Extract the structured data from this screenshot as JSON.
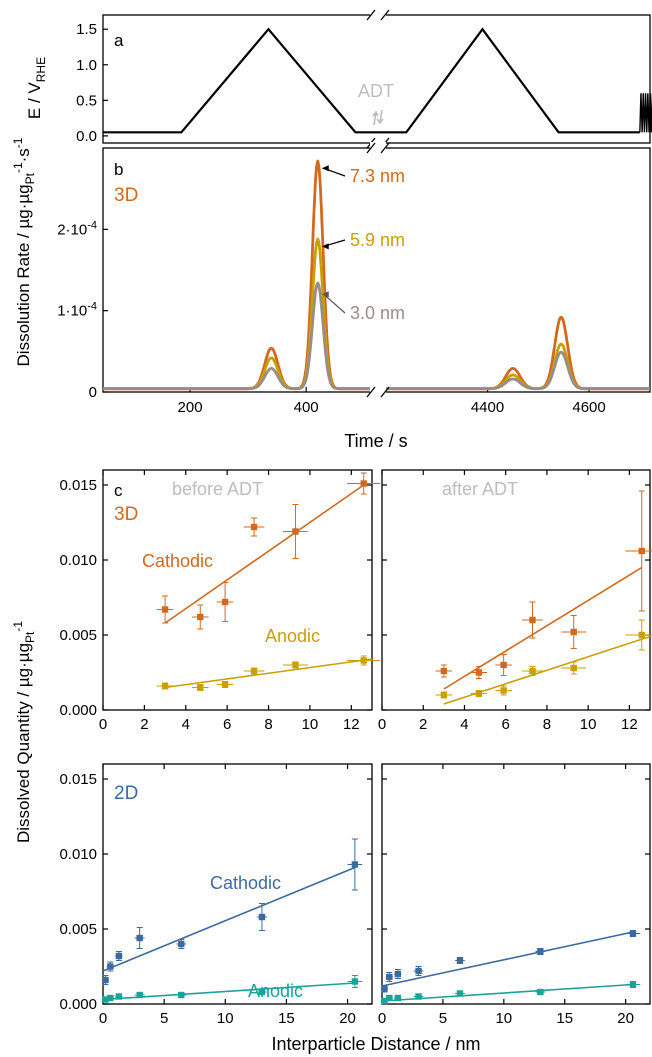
{
  "colors": {
    "axis": "#000000",
    "label_grey": "#bdbdbd",
    "orange": "#d2691e",
    "gold": "#c9a000",
    "grey": "#9a8c86",
    "blue": "#3d6a9e",
    "teal": "#1aa39a"
  },
  "figure": {
    "panel_a_label": "a",
    "panel_b_label": "b",
    "panel_c_label": "c",
    "label_3d": "3D",
    "label_2d": "2D",
    "adt_label": "ADT",
    "time_axis_label": "Time / s",
    "rate_axis_label": "Dissolution Rate / µg·µg",
    "rate_axis_sub": "Pt",
    "rate_axis_sup1": "-1",
    "rate_axis_mid": "·s",
    "rate_axis_sup2": "-1",
    "potential_axis_label": "E / V",
    "potential_axis_sub": "RHE",
    "quantity_axis_label": "Dissolved Quantity / µg·µg",
    "quantity_axis_sub": "Pt",
    "quantity_axis_sup": "-1",
    "distance_axis_label": "Interparticle Distance / nm",
    "before_adt": "before ADT",
    "after_adt": "after ADT",
    "cathodic": "Cathodic",
    "anodic": "Anodic"
  },
  "chart_data": [
    {
      "id": "a",
      "type": "line",
      "ylabel": "E / V_RHE",
      "yticks": [
        "0.0",
        "0.5",
        "1.0",
        "1.5"
      ],
      "ylim": [
        -0.1,
        1.7
      ],
      "x_segments": [
        [
          50,
          510
        ],
        [
          4200,
          4720
        ]
      ],
      "series": [
        {
          "points": [
            [
              50,
              0.05
            ],
            [
              185,
              0.05
            ],
            [
              335,
              1.5
            ],
            [
              485,
              0.05
            ],
            [
              510,
              0.05
            ],
            [
              4200,
              0.05
            ],
            [
              4240,
              0.05
            ],
            [
              4390,
              1.5
            ],
            [
              4540,
              0.05
            ],
            [
              4700,
              0.05
            ]
          ]
        }
      ]
    },
    {
      "id": "b",
      "type": "line",
      "xlabel": "Time / s",
      "ylabel": "Dissolution Rate / µg·µgPt-1·s-1",
      "xticks_left": [
        "200",
        "400"
      ],
      "xticks_right": [
        "4400",
        "4600"
      ],
      "yticks": [
        "0",
        "1·10-4",
        "2·10-4"
      ],
      "ylim": [
        0,
        0.0003
      ],
      "x_segments": [
        [
          50,
          510
        ],
        [
          4200,
          4720
        ]
      ],
      "series": [
        {
          "name": "7.3 nm",
          "color": "#d2691e",
          "base": 4e-06,
          "peaks": [
            [
              340,
              5e-05,
              16
            ],
            [
              420,
              0.00028,
              13
            ],
            [
              4450,
              2.5e-05,
              20
            ],
            [
              4545,
              8.8e-05,
              18
            ]
          ]
        },
        {
          "name": "5.9 nm",
          "color": "#c9a000",
          "base": 4e-06,
          "peaks": [
            [
              340,
              3.8e-05,
              16
            ],
            [
              420,
              0.000184,
              13
            ],
            [
              4450,
              1.7e-05,
              20
            ],
            [
              4545,
              5.5e-05,
              18
            ]
          ]
        },
        {
          "name": "3.0 nm",
          "color": "#9a8c86",
          "base": 4e-06,
          "peaks": [
            [
              340,
              2.5e-05,
              16
            ],
            [
              420,
              0.00013,
              13
            ],
            [
              4450,
              1.2e-05,
              20
            ],
            [
              4545,
              4.5e-05,
              18
            ]
          ]
        }
      ]
    },
    {
      "id": "c_3d_before",
      "type": "scatter",
      "title": "before ADT",
      "xlim": [
        0,
        13
      ],
      "ylim": [
        0,
        0.016
      ],
      "xticks": [
        "0",
        "2",
        "4",
        "6",
        "8",
        "10",
        "12"
      ],
      "yticks": [
        "0.000",
        "0.005",
        "0.010",
        "0.015"
      ],
      "series": [
        {
          "name": "Cathodic",
          "color": "#d2691e",
          "points": [
            [
              3.0,
              0.0067,
              0.4,
              0.0009
            ],
            [
              4.7,
              0.0062,
              0.4,
              0.0008
            ],
            [
              5.9,
              0.0072,
              0.4,
              0.0013
            ],
            [
              7.3,
              0.0122,
              0.5,
              0.0006
            ],
            [
              9.3,
              0.0119,
              0.6,
              0.0018
            ],
            [
              12.6,
              0.0151,
              0.8,
              0.0007
            ]
          ],
          "fit": [
            [
              3.0,
              0.0058
            ],
            [
              12.6,
              0.015
            ]
          ]
        },
        {
          "name": "Anodic",
          "color": "#c9a000",
          "points": [
            [
              3.0,
              0.0016,
              0.4,
              0.0002
            ],
            [
              4.7,
              0.0015,
              0.4,
              0.0002
            ],
            [
              5.9,
              0.0017,
              0.4,
              0.0002
            ],
            [
              7.3,
              0.0026,
              0.5,
              0.0002
            ],
            [
              9.3,
              0.003,
              0.6,
              0.0002
            ],
            [
              12.6,
              0.0033,
              0.8,
              0.0003
            ]
          ],
          "fit": [
            [
              3.0,
              0.0015
            ],
            [
              13.0,
              0.0034
            ]
          ]
        }
      ]
    },
    {
      "id": "c_3d_after",
      "type": "scatter",
      "title": "after ADT",
      "xlim": [
        0,
        13
      ],
      "ylim": [
        0,
        0.016
      ],
      "xticks": [
        "0",
        "2",
        "4",
        "6",
        "8",
        "10",
        "12"
      ],
      "series": [
        {
          "name": "Cathodic",
          "color": "#d2691e",
          "points": [
            [
              3.0,
              0.0026,
              0.4,
              0.0004
            ],
            [
              4.7,
              0.0025,
              0.4,
              0.0004
            ],
            [
              5.9,
              0.003,
              0.4,
              0.0007
            ],
            [
              7.3,
              0.006,
              0.5,
              0.0012
            ],
            [
              9.3,
              0.0052,
              0.6,
              0.0011
            ],
            [
              12.6,
              0.0106,
              0.8,
              0.004
            ]
          ],
          "fit": [
            [
              3.0,
              0.0014
            ],
            [
              12.6,
              0.0095
            ]
          ]
        },
        {
          "name": "Anodic",
          "color": "#c9a000",
          "points": [
            [
              3.0,
              0.001,
              0.4,
              0.0002
            ],
            [
              4.7,
              0.0011,
              0.4,
              0.0002
            ],
            [
              5.9,
              0.0013,
              0.4,
              0.0003
            ],
            [
              7.3,
              0.0026,
              0.5,
              0.0003
            ],
            [
              9.3,
              0.0028,
              0.6,
              0.0004
            ],
            [
              12.6,
              0.005,
              0.8,
              0.001
            ]
          ],
          "fit": [
            [
              3.0,
              0.0004
            ],
            [
              13.0,
              0.0049
            ]
          ]
        }
      ]
    },
    {
      "id": "c_2d_before",
      "type": "scatter",
      "xlim": [
        0,
        22
      ],
      "ylim": [
        0,
        0.016
      ],
      "xticks": [
        "0",
        "5",
        "10",
        "15",
        "20"
      ],
      "yticks": [
        "0.000",
        "0.005",
        "0.010",
        "0.015"
      ],
      "series": [
        {
          "name": "Cathodic",
          "color": "#3d6a9e",
          "points": [
            [
              0.2,
              0.0016,
              0.3,
              0.0003
            ],
            [
              0.6,
              0.0025,
              0.3,
              0.0003
            ],
            [
              1.3,
              0.0032,
              0.3,
              0.0003
            ],
            [
              3.0,
              0.0044,
              0.4,
              0.0007
            ],
            [
              6.4,
              0.004,
              0.4,
              0.0003
            ],
            [
              13.0,
              0.0058,
              0.4,
              0.0009
            ],
            [
              20.6,
              0.0093,
              0.6,
              0.0017
            ]
          ],
          "fit": [
            [
              0.0,
              0.0022
            ],
            [
              20.6,
              0.0091
            ]
          ]
        },
        {
          "name": "Anodic",
          "color": "#1aa39a",
          "points": [
            [
              0.2,
              0.0003,
              0.3,
              0.0001
            ],
            [
              0.6,
              0.0004,
              0.3,
              0.0001
            ],
            [
              1.3,
              0.0005,
              0.3,
              0.0001
            ],
            [
              3.0,
              0.0006,
              0.4,
              0.0001
            ],
            [
              6.4,
              0.0006,
              0.4,
              0.0001
            ],
            [
              13.0,
              0.0008,
              0.4,
              0.0001
            ],
            [
              20.6,
              0.0015,
              0.6,
              0.0004
            ]
          ],
          "fit": [
            [
              0.0,
              0.0003
            ],
            [
              20.6,
              0.0014
            ]
          ]
        }
      ]
    },
    {
      "id": "c_2d_after",
      "type": "scatter",
      "xlim": [
        0,
        22
      ],
      "ylim": [
        0,
        0.016
      ],
      "xticks": [
        "0",
        "5",
        "10",
        "15",
        "20"
      ],
      "series": [
        {
          "name": "Cathodic",
          "color": "#3d6a9e",
          "points": [
            [
              0.2,
              0.001,
              0.3,
              0.0002
            ],
            [
              0.6,
              0.0018,
              0.3,
              0.0003
            ],
            [
              1.3,
              0.002,
              0.3,
              0.0003
            ],
            [
              3.0,
              0.0022,
              0.4,
              0.0003
            ],
            [
              6.4,
              0.0029,
              0.4,
              0.0002
            ],
            [
              13.0,
              0.0035,
              0.4,
              0.0002
            ],
            [
              20.6,
              0.0047,
              0.6,
              0.0002
            ]
          ],
          "fit": [
            [
              0.0,
              0.0012
            ],
            [
              20.6,
              0.0048
            ]
          ]
        },
        {
          "name": "Anodic",
          "color": "#1aa39a",
          "points": [
            [
              0.2,
              0.0002,
              0.3,
              0.0001
            ],
            [
              0.6,
              0.0004,
              0.3,
              0.0001
            ],
            [
              1.3,
              0.0004,
              0.3,
              0.0001
            ],
            [
              3.0,
              0.0005,
              0.4,
              0.0001
            ],
            [
              6.4,
              0.0007,
              0.4,
              0.0001
            ],
            [
              13.0,
              0.0008,
              0.4,
              0.0001
            ],
            [
              20.6,
              0.0013,
              0.6,
              0.0002
            ]
          ],
          "fit": [
            [
              0.0,
              0.0002
            ],
            [
              20.6,
              0.0013
            ]
          ]
        }
      ]
    }
  ]
}
